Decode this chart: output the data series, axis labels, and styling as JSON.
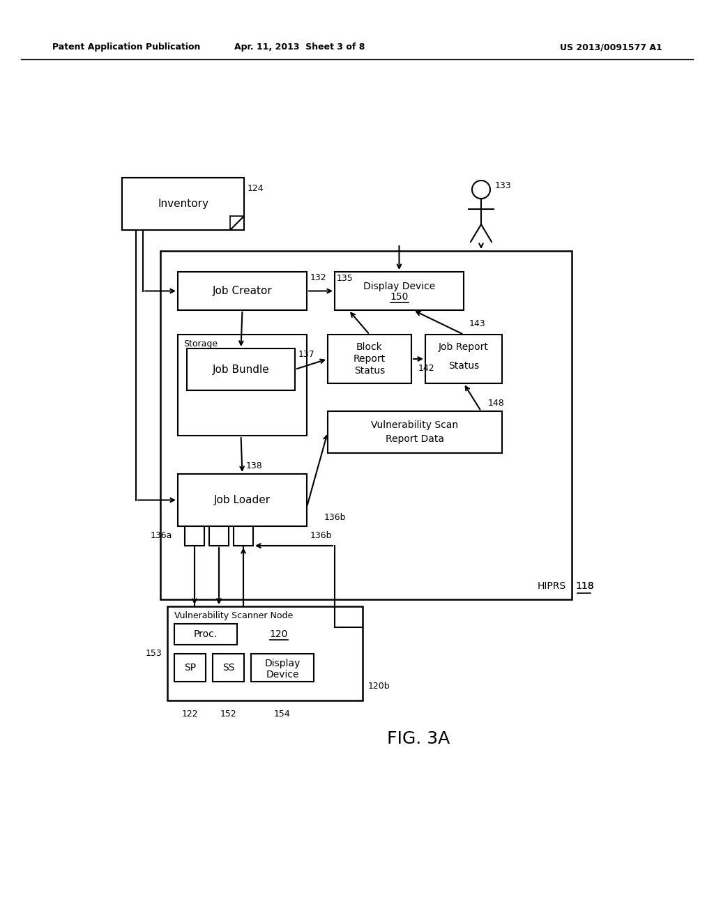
{
  "header_left": "Patent Application Publication",
  "header_mid": "Apr. 11, 2013  Sheet 3 of 8",
  "header_right": "US 2013/0091577 A1",
  "fig_label": "FIG. 3A",
  "background": "#ffffff"
}
